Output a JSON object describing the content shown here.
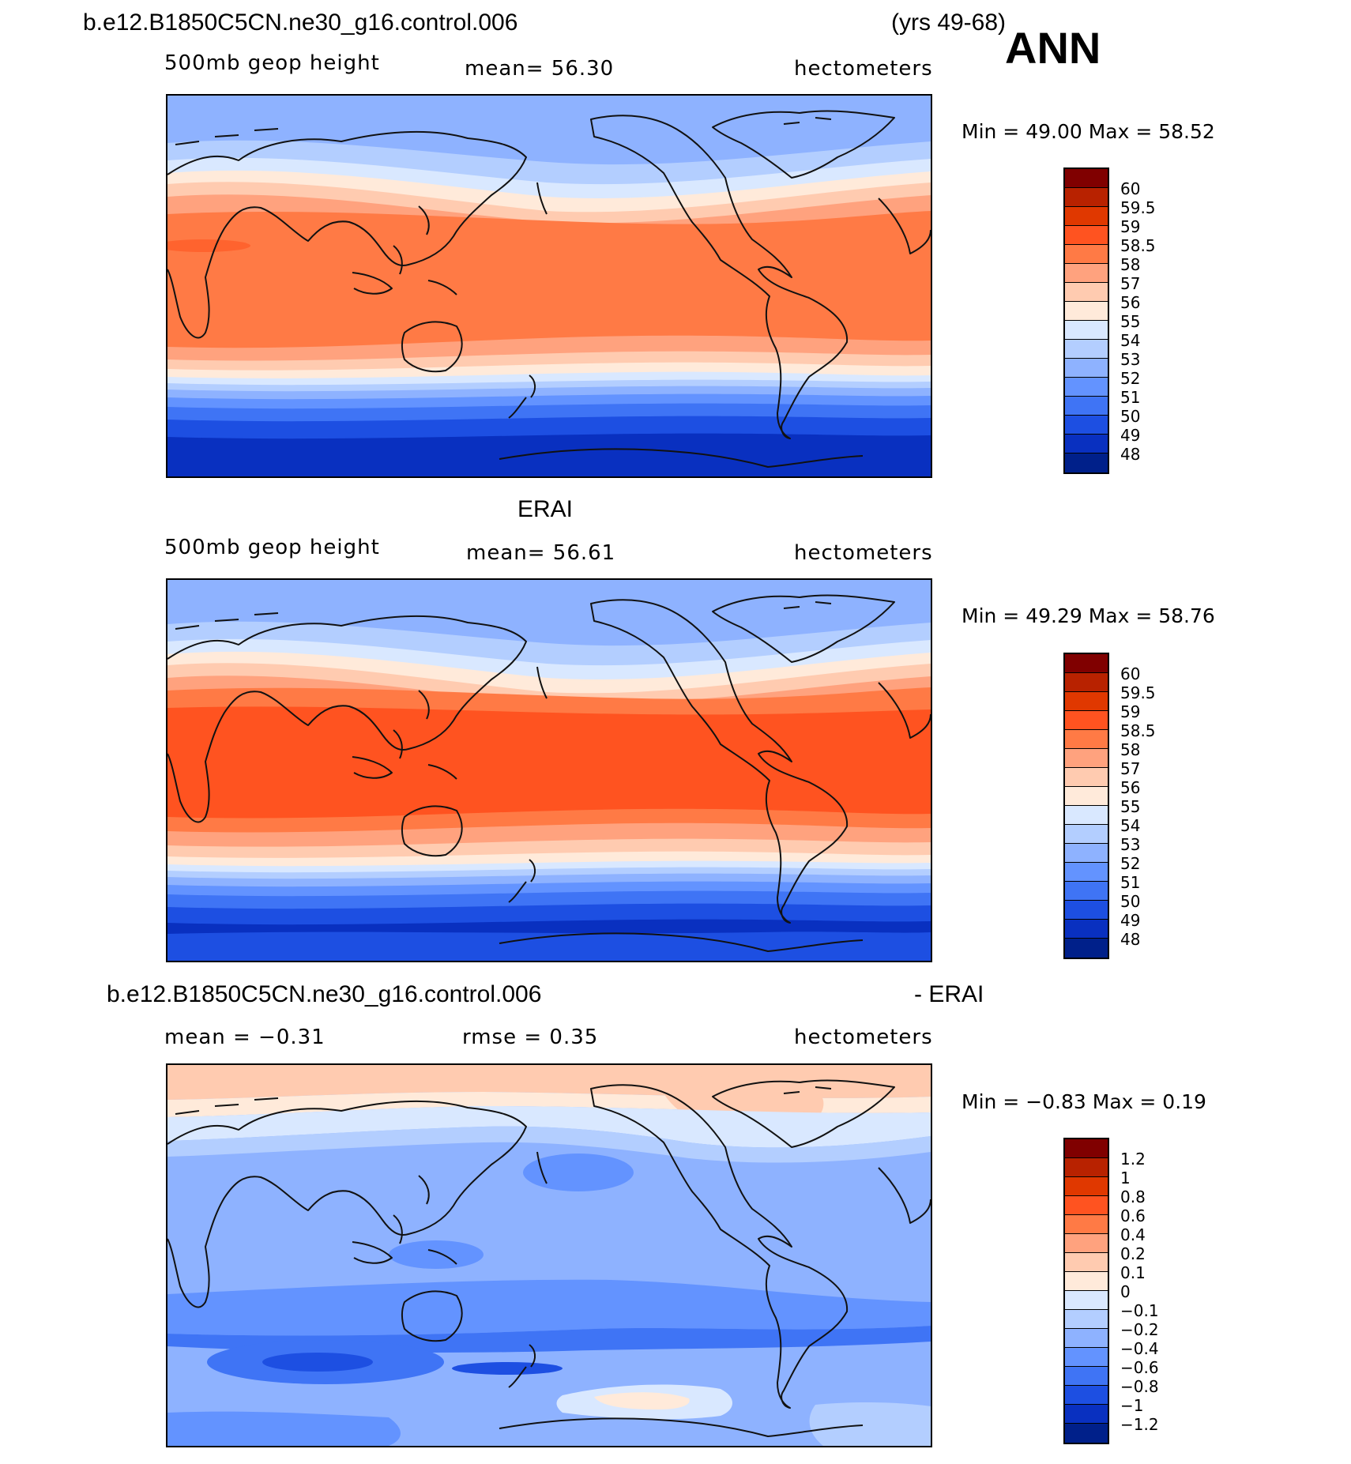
{
  "header": {
    "case_name": "b.e12.B1850C5CN.ne30_g16.control.006",
    "years": "(yrs 49-68)",
    "season": "ANN"
  },
  "panels": [
    {
      "id": "model",
      "title": "",
      "variable": "500mb geop height",
      "stat1": "mean=   56.30",
      "units": "hectometers",
      "minmax": "Min =   49.00  Max =   58.52",
      "colorbar": {
        "labels": [
          "60",
          "59.5",
          "59",
          "58.5",
          "58",
          "57",
          "56",
          "55",
          "54",
          "53",
          "52",
          "51",
          "50",
          "49",
          "48"
        ],
        "colors": [
          "#800000",
          "#B82200",
          "#E03800",
          "#FF5320",
          "#FF7A45",
          "#FFA27E",
          "#FFCBB0",
          "#FFEADA",
          "#D9E8FF",
          "#B3CEFF",
          "#8EB2FF",
          "#6393FF",
          "#3F74F5",
          "#1D4FE2",
          "#0930C0",
          "#00208A"
        ]
      }
    },
    {
      "id": "obs",
      "title": "ERAI",
      "variable": "500mb geop height",
      "stat1": "mean=   56.61",
      "units": "hectometers",
      "minmax": "Min =   49.29  Max =   58.76",
      "colorbar": {
        "labels": [
          "60",
          "59.5",
          "59",
          "58.5",
          "58",
          "57",
          "56",
          "55",
          "54",
          "53",
          "52",
          "51",
          "50",
          "49",
          "48"
        ],
        "colors": [
          "#800000",
          "#B82200",
          "#E03800",
          "#FF5320",
          "#FF7A45",
          "#FFA27E",
          "#FFCBB0",
          "#FFEADA",
          "#D9E8FF",
          "#B3CEFF",
          "#8EB2FF",
          "#6393FF",
          "#3F74F5",
          "#1D4FE2",
          "#0930C0",
          "#00208A"
        ]
      }
    },
    {
      "id": "diff",
      "title_left": "b.e12.B1850C5CN.ne30_g16.control.006",
      "title_right": "- ERAI",
      "stat1": "mean =   −0.31",
      "stat2": "rmse =    0.35",
      "units": "hectometers",
      "minmax": "Min =   −0.83  Max =     0.19",
      "colorbar": {
        "labels": [
          "1.2",
          "1",
          "0.8",
          "0.6",
          "0.4",
          "0.2",
          "0.1",
          "0",
          "−0.1",
          "−0.2",
          "−0.4",
          "−0.6",
          "−0.8",
          "−1",
          "−1.2"
        ],
        "colors": [
          "#800000",
          "#B82200",
          "#E03800",
          "#FF5320",
          "#FF7A45",
          "#FFA27E",
          "#FFCBB0",
          "#FFEADA",
          "#D9E8FF",
          "#B3CEFF",
          "#8EB2FF",
          "#6393FF",
          "#3F74F5",
          "#1D4FE2",
          "#0930C0",
          "#00208A"
        ]
      }
    }
  ],
  "colors": {
    "outline": "#000000",
    "coast": "#111111"
  }
}
